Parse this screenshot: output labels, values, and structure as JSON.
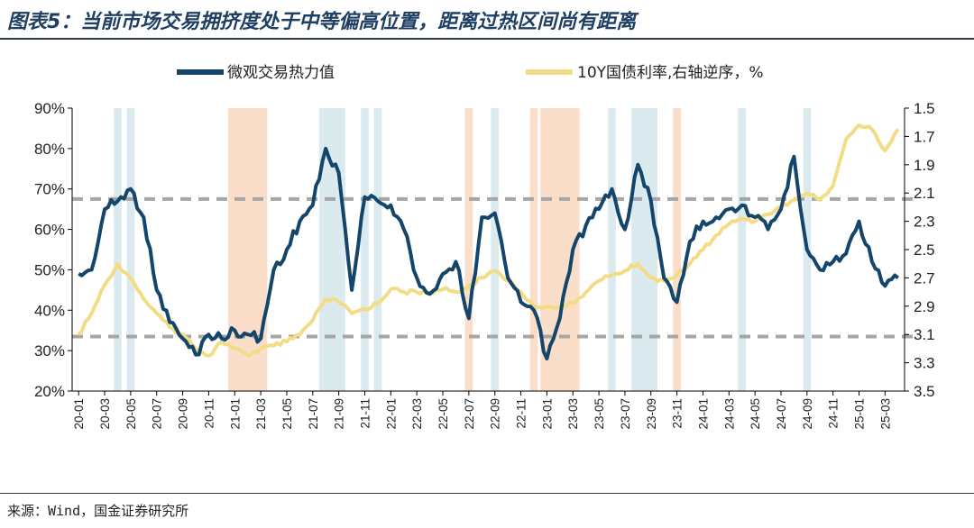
{
  "title": "图表5：当前市场交易拥挤度处于中等偏高位置，距离过热区间尚有距离",
  "source": "来源：Wind，国金证券研究所",
  "colors": {
    "heat": "#14456b",
    "yield": "#f2dd86",
    "shade_blue": "#d3e6ec",
    "shade_orange": "#f9d8c0",
    "ref_line": "#a6a6a6"
  },
  "chart_data": {
    "type": "line",
    "title": "图表5：当前市场交易拥挤度处于中等偏高位置，距离过热区间尚有距离",
    "legend_position": "top",
    "grid": false,
    "x_categories": [
      "20-01",
      "20-03",
      "20-05",
      "20-07",
      "20-09",
      "20-11",
      "21-01",
      "21-03",
      "21-05",
      "21-07",
      "21-09",
      "21-11",
      "22-01",
      "22-03",
      "22-05",
      "22-07",
      "22-09",
      "22-11",
      "23-01",
      "23-03",
      "23-05",
      "23-07",
      "23-09",
      "23-11",
      "24-01",
      "24-03",
      "24-05",
      "24-07",
      "24-09",
      "24-11",
      "25-01",
      "25-03"
    ],
    "y_left": {
      "ticks": [
        "20%",
        "30%",
        "40%",
        "50%",
        "60%",
        "70%",
        "80%",
        "90%"
      ],
      "min": 20,
      "max": 90
    },
    "y_right": {
      "ticks": [
        "1.5",
        "1.7",
        "1.9",
        "2.1",
        "2.3",
        "2.5",
        "2.7",
        "2.9",
        "3.1",
        "3.3",
        "3.5"
      ],
      "min": 1.5,
      "max": 3.5,
      "inverted": true
    },
    "reference_lines_left_axis": [
      67.5,
      33.5
    ],
    "series": [
      {
        "name": "微观交易热力值",
        "axis": "left",
        "color": "#14456b",
        "points": [
          [
            "2020-01",
            49
          ],
          [
            "2020-02",
            50
          ],
          [
            "2020-03",
            65
          ],
          [
            "2020-04",
            67
          ],
          [
            "2020-05",
            70
          ],
          [
            "2020-06",
            63
          ],
          [
            "2020-07",
            45
          ],
          [
            "2020-08",
            37
          ],
          [
            "2020-09",
            33
          ],
          [
            "2020-10",
            29
          ],
          [
            "2020-11",
            34
          ],
          [
            "2020-12",
            33
          ],
          [
            "2021-01",
            35
          ],
          [
            "2021-02",
            34
          ],
          [
            "2021-03",
            33
          ],
          [
            "2021-04",
            50
          ],
          [
            "2021-05",
            55
          ],
          [
            "2021-06",
            62
          ],
          [
            "2021-07",
            66
          ],
          [
            "2021-08",
            80
          ],
          [
            "2021-09",
            74
          ],
          [
            "2021-10",
            45
          ],
          [
            "2021-11",
            68
          ],
          [
            "2021-12",
            67
          ],
          [
            "2022-01",
            66
          ],
          [
            "2022-02",
            60
          ],
          [
            "2022-03",
            48
          ],
          [
            "2022-04",
            44
          ],
          [
            "2022-05",
            49
          ],
          [
            "2022-06",
            52
          ],
          [
            "2022-07",
            38
          ],
          [
            "2022-08",
            63
          ],
          [
            "2022-09",
            64
          ],
          [
            "2022-10",
            48
          ],
          [
            "2022-11",
            42
          ],
          [
            "2022-12",
            40
          ],
          [
            "2023-01",
            28
          ],
          [
            "2023-02",
            38
          ],
          [
            "2023-03",
            55
          ],
          [
            "2023-04",
            61
          ],
          [
            "2023-05",
            65
          ],
          [
            "2023-06",
            70
          ],
          [
            "2023-07",
            60
          ],
          [
            "2023-08",
            76
          ],
          [
            "2023-09",
            67
          ],
          [
            "2023-10",
            48
          ],
          [
            "2023-11",
            42
          ],
          [
            "2023-12",
            57
          ],
          [
            "2024-01",
            62
          ],
          [
            "2024-02",
            63
          ],
          [
            "2024-03",
            65
          ],
          [
            "2024-04",
            66
          ],
          [
            "2024-05",
            63
          ],
          [
            "2024-06",
            60
          ],
          [
            "2024-07",
            65
          ],
          [
            "2024-08",
            78
          ],
          [
            "2024-09",
            55
          ],
          [
            "2024-10",
            50
          ],
          [
            "2024-11",
            52
          ],
          [
            "2024-12",
            54
          ],
          [
            "2025-01",
            62
          ],
          [
            "2025-02",
            52
          ],
          [
            "2025-03",
            46
          ],
          [
            "2025-04",
            48
          ]
        ]
      },
      {
        "name": "10Y国债利率,右轴逆序，%",
        "axis": "right",
        "color": "#f2dd86",
        "points": [
          [
            "2020-01",
            3.1
          ],
          [
            "2020-02",
            2.95
          ],
          [
            "2020-03",
            2.75
          ],
          [
            "2020-04",
            2.6
          ],
          [
            "2020-05",
            2.7
          ],
          [
            "2020-06",
            2.85
          ],
          [
            "2020-07",
            2.95
          ],
          [
            "2020-08",
            3.05
          ],
          [
            "2020-09",
            3.1
          ],
          [
            "2020-10",
            3.2
          ],
          [
            "2020-11",
            3.25
          ],
          [
            "2020-12",
            3.15
          ],
          [
            "2021-01",
            3.2
          ],
          [
            "2021-02",
            3.25
          ],
          [
            "2021-03",
            3.2
          ],
          [
            "2021-04",
            3.18
          ],
          [
            "2021-05",
            3.15
          ],
          [
            "2021-06",
            3.1
          ],
          [
            "2021-07",
            3.0
          ],
          [
            "2021-08",
            2.85
          ],
          [
            "2021-09",
            2.87
          ],
          [
            "2021-10",
            2.95
          ],
          [
            "2021-11",
            2.92
          ],
          [
            "2021-12",
            2.88
          ],
          [
            "2022-01",
            2.78
          ],
          [
            "2022-02",
            2.8
          ],
          [
            "2022-03",
            2.8
          ],
          [
            "2022-04",
            2.8
          ],
          [
            "2022-05",
            2.78
          ],
          [
            "2022-06",
            2.8
          ],
          [
            "2022-07",
            2.75
          ],
          [
            "2022-08",
            2.7
          ],
          [
            "2022-09",
            2.65
          ],
          [
            "2022-10",
            2.72
          ],
          [
            "2022-11",
            2.8
          ],
          [
            "2022-12",
            2.9
          ],
          [
            "2023-01",
            2.9
          ],
          [
            "2023-02",
            2.9
          ],
          [
            "2023-03",
            2.88
          ],
          [
            "2023-04",
            2.8
          ],
          [
            "2023-05",
            2.72
          ],
          [
            "2023-06",
            2.68
          ],
          [
            "2023-07",
            2.65
          ],
          [
            "2023-08",
            2.6
          ],
          [
            "2023-09",
            2.7
          ],
          [
            "2023-10",
            2.72
          ],
          [
            "2023-11",
            2.68
          ],
          [
            "2023-12",
            2.6
          ],
          [
            "2024-01",
            2.5
          ],
          [
            "2024-02",
            2.4
          ],
          [
            "2024-03",
            2.32
          ],
          [
            "2024-04",
            2.28
          ],
          [
            "2024-05",
            2.3
          ],
          [
            "2024-06",
            2.25
          ],
          [
            "2024-07",
            2.2
          ],
          [
            "2024-08",
            2.15
          ],
          [
            "2024-09",
            2.1
          ],
          [
            "2024-10",
            2.15
          ],
          [
            "2024-11",
            2.05
          ],
          [
            "2024-12",
            1.72
          ],
          [
            "2025-01",
            1.62
          ],
          [
            "2025-02",
            1.65
          ],
          [
            "2025-03",
            1.8
          ],
          [
            "2025-04",
            1.65
          ]
        ]
      }
    ],
    "shaded_periods": [
      {
        "start": "2020-04",
        "end": "2020-04",
        "color": "blue"
      },
      {
        "start": "2020-05",
        "end": "2020-05",
        "color": "blue"
      },
      {
        "start": "2021-01",
        "end": "2021-03",
        "color": "orange"
      },
      {
        "start": "2021-08",
        "end": "2021-09",
        "color": "blue"
      },
      {
        "start": "2021-11",
        "end": "2021-11",
        "color": "blue"
      },
      {
        "start": "2021-12",
        "end": "2021-12",
        "color": "blue"
      },
      {
        "start": "2022-07",
        "end": "2022-07",
        "color": "orange"
      },
      {
        "start": "2022-09",
        "end": "2022-09",
        "color": "blue"
      },
      {
        "start": "2022-12",
        "end": "2022-12",
        "color": "orange"
      },
      {
        "start": "2023-01",
        "end": "2023-03",
        "color": "orange"
      },
      {
        "start": "2023-06",
        "end": "2023-06",
        "color": "blue"
      },
      {
        "start": "2023-08",
        "end": "2023-09",
        "color": "blue"
      },
      {
        "start": "2023-11",
        "end": "2023-11",
        "color": "orange"
      },
      {
        "start": "2024-04",
        "end": "2024-04",
        "color": "blue"
      },
      {
        "start": "2024-09",
        "end": "2024-09",
        "color": "blue"
      }
    ]
  }
}
